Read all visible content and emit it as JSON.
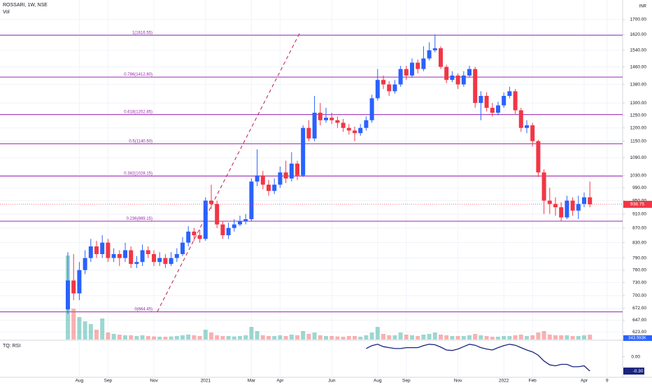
{
  "chart_data": {
    "type": "candlestick",
    "title": "ROSSARI, 1W, NSE",
    "volume_title": "Vol",
    "indicator_title": "TQ: RSI",
    "currency": "INR",
    "log_scale": true,
    "grid": true,
    "up_color": "#2962ff",
    "down_color": "#f23645",
    "fib_color": "#9c27b0",
    "indicator_color": "#1a237e",
    "categories": [
      null,
      null,
      "Aug",
      null,
      null,
      null,
      null,
      "Sep",
      null,
      null,
      null,
      null,
      null,
      null,
      null,
      "Nov",
      null,
      null,
      null,
      null,
      null,
      null,
      null,
      null,
      "2021",
      null,
      null,
      null,
      null,
      null,
      null,
      null,
      "Mar",
      null,
      null,
      null,
      null,
      "Apr",
      null,
      null,
      null,
      null,
      null,
      null,
      null,
      null,
      "Jun",
      null,
      null,
      null,
      null,
      null,
      null,
      null,
      "Aug",
      null,
      null,
      null,
      null,
      "Sep",
      null,
      null,
      null,
      null,
      null,
      null,
      null,
      null,
      "Nov",
      null,
      null,
      null,
      null,
      null,
      null,
      null,
      "2022",
      null,
      null,
      null,
      null,
      "Feb",
      null,
      null,
      null,
      null,
      null,
      null,
      null,
      null,
      "Apr",
      null,
      null,
      null,
      "9"
    ],
    "open": [
      670,
      735,
      705,
      760,
      790,
      820,
      800,
      830,
      790,
      800,
      790,
      810,
      775,
      780,
      810,
      800,
      780,
      790,
      775,
      790,
      800,
      830,
      860,
      850,
      840,
      950,
      940,
      880,
      850,
      870,
      880,
      890,
      895,
      1010,
      1030,
      1000,
      980,
      1000,
      1040,
      1020,
      1070,
      1030,
      1200,
      1160,
      1260,
      1230,
      1240,
      1230,
      1220,
      1200,
      1190,
      1180,
      1200,
      1230,
      1320,
      1400,
      1380,
      1350,
      1380,
      1450,
      1420,
      1480,
      1450,
      1500,
      1540,
      1550,
      1460,
      1400,
      1420,
      1380,
      1420,
      1450,
      1300,
      1330,
      1280,
      1260,
      1290,
      1330,
      1350,
      1270,
      1200,
      1210,
      1150,
      1040,
      950,
      940,
      930,
      900,
      950,
      920,
      940,
      960,
      null,
      null,
      null
    ],
    "high": [
      805,
      800,
      780,
      810,
      840,
      835,
      850,
      840,
      815,
      810,
      830,
      820,
      795,
      825,
      820,
      810,
      805,
      800,
      805,
      815,
      845,
      875,
      870,
      865,
      960,
      1000,
      950,
      890,
      885,
      895,
      905,
      910,
      1020,
      1120,
      1045,
      1015,
      1020,
      1060,
      1080,
      1110,
      1080,
      1210,
      1230,
      1330,
      1300,
      1280,
      1260,
      1245,
      1235,
      1215,
      1205,
      1215,
      1245,
      1335,
      1450,
      1420,
      1395,
      1400,
      1465,
      1465,
      1500,
      1495,
      1560,
      1580,
      1620,
      1560,
      1470,
      1440,
      1430,
      1440,
      1465,
      1460,
      1350,
      1345,
      1300,
      1305,
      1345,
      1370,
      1360,
      1280,
      1230,
      1220,
      1155,
      1050,
      990,
      960,
      945,
      965,
      960,
      965,
      975,
      1010,
      null,
      null,
      null
    ],
    "low": [
      660,
      690,
      690,
      750,
      780,
      790,
      790,
      780,
      780,
      770,
      780,
      765,
      765,
      770,
      790,
      770,
      770,
      765,
      770,
      780,
      795,
      820,
      835,
      830,
      835,
      925,
      870,
      840,
      840,
      860,
      875,
      880,
      890,
      995,
      985,
      965,
      970,
      990,
      1005,
      1010,
      1015,
      1025,
      1150,
      1150,
      1210,
      1220,
      1215,
      1200,
      1185,
      1175,
      1150,
      1170,
      1190,
      1220,
      1310,
      1360,
      1330,
      1340,
      1370,
      1400,
      1410,
      1430,
      1440,
      1490,
      1530,
      1450,
      1385,
      1390,
      1360,
      1370,
      1410,
      1280,
      1230,
      1265,
      1245,
      1250,
      1280,
      1320,
      1255,
      1185,
      1180,
      1130,
      1025,
      910,
      910,
      905,
      890,
      895,
      905,
      895,
      930,
      930,
      null,
      null,
      null
    ],
    "close": [
      735,
      705,
      760,
      790,
      820,
      800,
      830,
      790,
      800,
      790,
      810,
      775,
      780,
      810,
      800,
      780,
      790,
      775,
      790,
      800,
      830,
      860,
      850,
      840,
      950,
      940,
      880,
      850,
      870,
      880,
      890,
      895,
      1010,
      1030,
      1000,
      980,
      1000,
      1040,
      1020,
      1070,
      1030,
      1200,
      1160,
      1260,
      1230,
      1240,
      1230,
      1220,
      1200,
      1190,
      1180,
      1200,
      1230,
      1320,
      1400,
      1380,
      1350,
      1380,
      1450,
      1420,
      1480,
      1450,
      1500,
      1540,
      1550,
      1460,
      1400,
      1420,
      1380,
      1420,
      1450,
      1300,
      1330,
      1280,
      1260,
      1290,
      1330,
      1350,
      1270,
      1200,
      1210,
      1150,
      1040,
      950,
      940,
      930,
      900,
      950,
      920,
      940,
      960,
      938.75,
      null,
      null,
      null
    ],
    "volume": [
      6000,
      2200,
      1600,
      1300,
      1100,
      700,
      1500,
      500,
      400,
      350,
      300,
      300,
      250,
      300,
      250,
      220,
      200,
      200,
      220,
      250,
      300,
      350,
      300,
      250,
      700,
      500,
      300,
      250,
      250,
      220,
      250,
      300,
      900,
      600,
      300,
      250,
      250,
      300,
      250,
      350,
      300,
      600,
      400,
      500,
      300,
      250,
      250,
      220,
      200,
      250,
      250,
      200,
      300,
      500,
      900,
      400,
      300,
      300,
      500,
      350,
      300,
      250,
      350,
      400,
      500,
      350,
      300,
      250,
      250,
      250,
      300,
      400,
      300,
      250,
      200,
      200,
      250,
      250,
      300,
      350,
      250,
      300,
      500,
      600,
      350,
      300,
      300,
      300,
      250,
      250,
      300,
      343.593,
      null,
      null,
      null
    ],
    "volume_last_label": "343.593K",
    "rsi": [
      null,
      null,
      null,
      null,
      null,
      null,
      null,
      null,
      null,
      null,
      null,
      null,
      null,
      null,
      null,
      null,
      null,
      null,
      null,
      null,
      null,
      null,
      null,
      null,
      null,
      null,
      null,
      null,
      null,
      null,
      null,
      null,
      null,
      null,
      null,
      null,
      null,
      null,
      null,
      null,
      null,
      null,
      null,
      null,
      null,
      null,
      null,
      null,
      null,
      null,
      null,
      null,
      0.17,
      0.23,
      0.26,
      0.21,
      0.19,
      0.17,
      0.17,
      0.19,
      0.19,
      0.19,
      0.23,
      0.26,
      0.25,
      0.2,
      0.14,
      0.13,
      0.16,
      0.21,
      0.26,
      0.24,
      0.19,
      0.16,
      0.14,
      0.19,
      0.23,
      0.26,
      0.24,
      0.19,
      0.14,
      0.1,
      0.03,
      -0.09,
      -0.17,
      -0.19,
      -0.16,
      -0.16,
      -0.21,
      -0.21,
      -0.19,
      -0.3,
      null,
      null,
      null
    ],
    "rsi_last_label": "-0.30",
    "last_price": {
      "value": 938.75,
      "label": "938.75"
    },
    "fib_levels": [
      {
        "label": "1(1616.55)",
        "value": 1616.55
      },
      {
        "label": "0.786(1412.80)",
        "value": 1412.8
      },
      {
        "label": "0.618(1252.85)",
        "value": 1252.85
      },
      {
        "label": "0.5(1140.50)",
        "value": 1140.5
      },
      {
        "label": "0.382(1028.15)",
        "value": 1028.15
      },
      {
        "label": "0.236(889.15)",
        "value": 889.15
      },
      {
        "label": "0(664.45)",
        "value": 664.45
      }
    ],
    "ylim": [
      608,
      1810
    ],
    "yticks": [
      {
        "value": 1700,
        "label": "1700.00"
      },
      {
        "value": 1620,
        "label": "1620.00"
      },
      {
        "value": 1540,
        "label": "1540.00"
      },
      {
        "value": 1460,
        "label": "1460.00"
      },
      {
        "value": 1380,
        "label": "1380.00"
      },
      {
        "value": 1300,
        "label": "1300.00"
      },
      {
        "value": 1250,
        "label": "1250.00"
      },
      {
        "value": 1200,
        "label": "1200.00"
      },
      {
        "value": 1150,
        "label": "1150.00"
      },
      {
        "value": 1090,
        "label": "1090.00"
      },
      {
        "value": 1030,
        "label": "1030.00"
      },
      {
        "value": 990,
        "label": "990.00"
      },
      {
        "value": 950,
        "label": "950.00"
      },
      {
        "value": 910,
        "label": "910.00"
      },
      {
        "value": 870,
        "label": "870.00"
      },
      {
        "value": 830,
        "label": "830.00"
      },
      {
        "value": 790,
        "label": "790.00"
      },
      {
        "value": 760,
        "label": "760.00"
      },
      {
        "value": 730,
        "label": "730.00"
      },
      {
        "value": 700,
        "label": "700.00"
      },
      {
        "value": 672,
        "label": "672.00"
      },
      {
        "value": 647,
        "label": "647.00"
      },
      {
        "value": 623,
        "label": "623.00"
      }
    ],
    "rsi_ylim": [
      -0.43,
      0.33
    ],
    "rsi_ticks": [
      {
        "value": 0,
        "label": "0.00"
      }
    ]
  }
}
